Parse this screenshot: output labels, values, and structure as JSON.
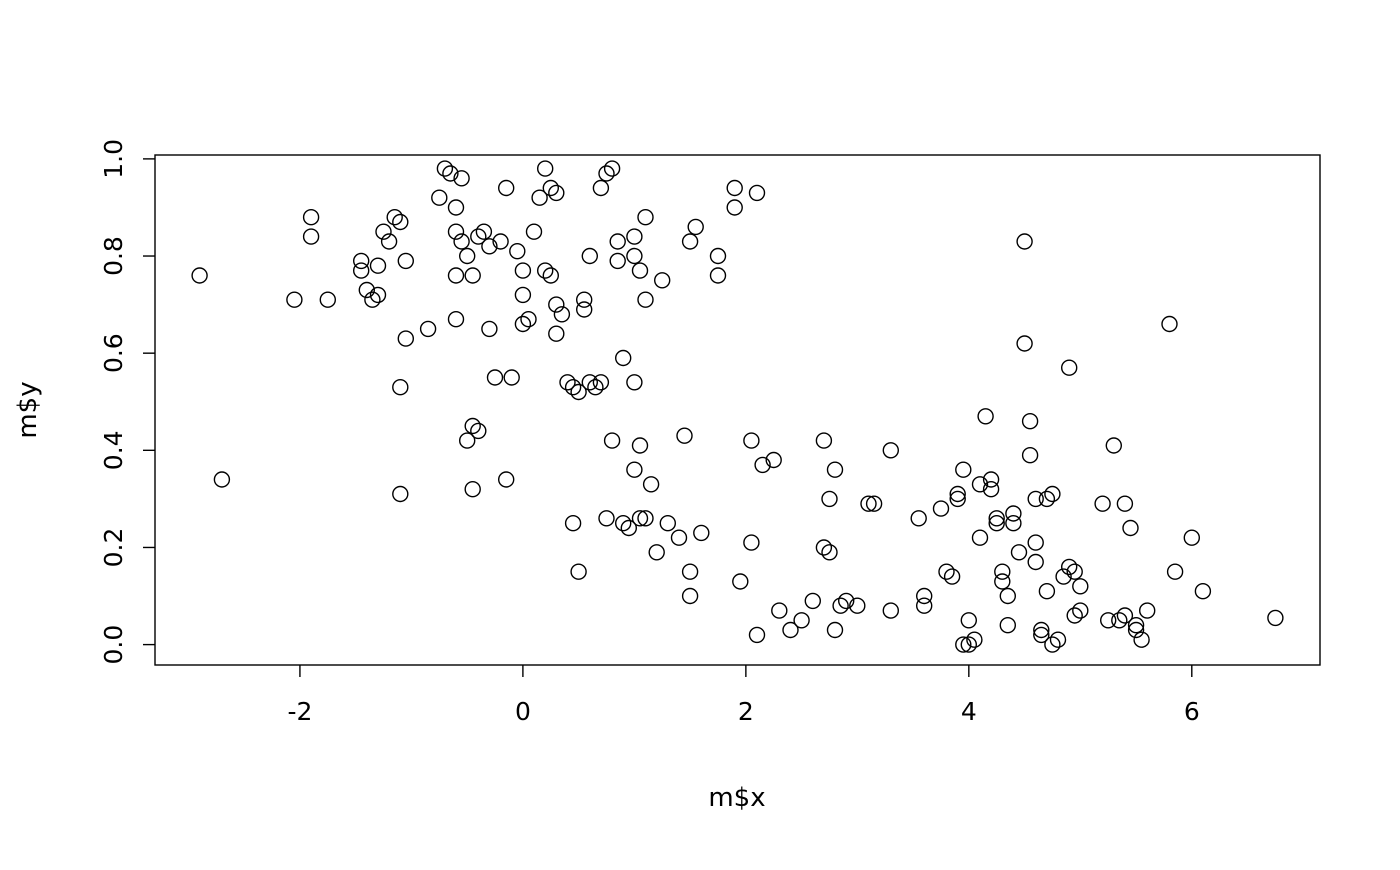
{
  "chart_data": {
    "type": "scatter",
    "title": "",
    "xlabel": "m$x",
    "ylabel": "m$y",
    "xlim": [
      -3.3,
      7.15
    ],
    "ylim": [
      -0.042,
      1.008
    ],
    "x_ticks": [
      -2,
      0,
      2,
      4,
      6
    ],
    "y_ticks": [
      0.0,
      0.2,
      0.4,
      0.6,
      0.8,
      1.0
    ],
    "grid": false,
    "legend": "none",
    "marker": "open-circle",
    "marker_color": "#000000",
    "background_color": "#ffffff",
    "points": [
      [
        -2.9,
        0.76
      ],
      [
        -2.7,
        0.34
      ],
      [
        -2.05,
        0.71
      ],
      [
        -1.9,
        0.88
      ],
      [
        -1.9,
        0.84
      ],
      [
        -1.75,
        0.71
      ],
      [
        -1.45,
        0.79
      ],
      [
        -1.45,
        0.77
      ],
      [
        -1.4,
        0.73
      ],
      [
        -1.35,
        0.71
      ],
      [
        -1.3,
        0.72
      ],
      [
        -1.3,
        0.78
      ],
      [
        -1.25,
        0.85
      ],
      [
        -1.2,
        0.83
      ],
      [
        -1.15,
        0.88
      ],
      [
        -1.1,
        0.87
      ],
      [
        -1.05,
        0.79
      ],
      [
        -1.05,
        0.63
      ],
      [
        -1.1,
        0.53
      ],
      [
        -1.1,
        0.31
      ],
      [
        -0.85,
        0.65
      ],
      [
        -0.75,
        0.92
      ],
      [
        -0.7,
        0.98
      ],
      [
        -0.65,
        0.97
      ],
      [
        -0.6,
        0.9
      ],
      [
        -0.55,
        0.96
      ],
      [
        -0.6,
        0.85
      ],
      [
        -0.55,
        0.83
      ],
      [
        -0.5,
        0.8
      ],
      [
        -0.45,
        0.76
      ],
      [
        -0.6,
        0.76
      ],
      [
        -0.6,
        0.67
      ],
      [
        -0.4,
        0.84
      ],
      [
        -0.35,
        0.85
      ],
      [
        -0.3,
        0.82
      ],
      [
        -0.3,
        0.65
      ],
      [
        -0.45,
        0.45
      ],
      [
        -0.4,
        0.44
      ],
      [
        -0.5,
        0.42
      ],
      [
        -0.45,
        0.32
      ],
      [
        -0.25,
        0.55
      ],
      [
        -0.2,
        0.83
      ],
      [
        -0.15,
        0.94
      ],
      [
        -0.1,
        0.55
      ],
      [
        -0.15,
        0.34
      ],
      [
        -0.05,
        0.81
      ],
      [
        0.0,
        0.77
      ],
      [
        0.0,
        0.72
      ],
      [
        0.05,
        0.67
      ],
      [
        0.0,
        0.66
      ],
      [
        0.1,
        0.85
      ],
      [
        0.15,
        0.92
      ],
      [
        0.2,
        0.98
      ],
      [
        0.25,
        0.94
      ],
      [
        0.3,
        0.93
      ],
      [
        0.2,
        0.77
      ],
      [
        0.25,
        0.76
      ],
      [
        0.3,
        0.7
      ],
      [
        0.3,
        0.64
      ],
      [
        0.35,
        0.68
      ],
      [
        0.4,
        0.54
      ],
      [
        0.45,
        0.53
      ],
      [
        0.5,
        0.52
      ],
      [
        0.45,
        0.25
      ],
      [
        0.5,
        0.15
      ],
      [
        0.55,
        0.71
      ],
      [
        0.55,
        0.69
      ],
      [
        0.6,
        0.8
      ],
      [
        0.6,
        0.54
      ],
      [
        0.65,
        0.53
      ],
      [
        0.7,
        0.94
      ],
      [
        0.75,
        0.97
      ],
      [
        0.8,
        0.98
      ],
      [
        0.7,
        0.54
      ],
      [
        0.75,
        0.26
      ],
      [
        0.8,
        0.42
      ],
      [
        0.85,
        0.83
      ],
      [
        0.85,
        0.79
      ],
      [
        0.9,
        0.59
      ],
      [
        0.9,
        0.25
      ],
      [
        0.95,
        0.24
      ],
      [
        1.0,
        0.84
      ],
      [
        1.0,
        0.8
      ],
      [
        1.05,
        0.77
      ],
      [
        1.0,
        0.54
      ],
      [
        1.05,
        0.41
      ],
      [
        1.0,
        0.36
      ],
      [
        1.1,
        0.26
      ],
      [
        1.05,
        0.26
      ],
      [
        1.1,
        0.88
      ],
      [
        1.1,
        0.71
      ],
      [
        1.15,
        0.33
      ],
      [
        1.2,
        0.19
      ],
      [
        1.25,
        0.75
      ],
      [
        1.3,
        0.25
      ],
      [
        1.4,
        0.22
      ],
      [
        1.45,
        0.43
      ],
      [
        1.5,
        0.83
      ],
      [
        1.55,
        0.86
      ],
      [
        1.5,
        0.15
      ],
      [
        1.5,
        0.1
      ],
      [
        1.6,
        0.23
      ],
      [
        1.75,
        0.8
      ],
      [
        1.75,
        0.76
      ],
      [
        1.9,
        0.94
      ],
      [
        1.9,
        0.9
      ],
      [
        2.1,
        0.93
      ],
      [
        2.05,
        0.42
      ],
      [
        2.05,
        0.21
      ],
      [
        1.95,
        0.13
      ],
      [
        2.1,
        0.02
      ],
      [
        2.15,
        0.37
      ],
      [
        2.25,
        0.38
      ],
      [
        2.3,
        0.07
      ],
      [
        2.4,
        0.03
      ],
      [
        2.5,
        0.05
      ],
      [
        2.6,
        0.09
      ],
      [
        2.7,
        0.42
      ],
      [
        2.75,
        0.3
      ],
      [
        2.7,
        0.2
      ],
      [
        2.75,
        0.19
      ],
      [
        2.8,
        0.36
      ],
      [
        2.85,
        0.08
      ],
      [
        2.9,
        0.09
      ],
      [
        2.8,
        0.03
      ],
      [
        3.0,
        0.08
      ],
      [
        3.1,
        0.29
      ],
      [
        3.15,
        0.29
      ],
      [
        3.3,
        0.4
      ],
      [
        3.3,
        0.07
      ],
      [
        3.55,
        0.26
      ],
      [
        3.6,
        0.1
      ],
      [
        3.6,
        0.08
      ],
      [
        3.75,
        0.28
      ],
      [
        3.8,
        0.15
      ],
      [
        3.85,
        0.14
      ],
      [
        3.9,
        0.31
      ],
      [
        3.9,
        0.3
      ],
      [
        3.95,
        0.36
      ],
      [
        3.95,
        0.0
      ],
      [
        4.0,
        0.0
      ],
      [
        4.0,
        0.05
      ],
      [
        4.05,
        0.01
      ],
      [
        4.1,
        0.22
      ],
      [
        4.1,
        0.33
      ],
      [
        4.15,
        0.47
      ],
      [
        4.2,
        0.34
      ],
      [
        4.2,
        0.32
      ],
      [
        4.25,
        0.26
      ],
      [
        4.25,
        0.25
      ],
      [
        4.3,
        0.15
      ],
      [
        4.3,
        0.13
      ],
      [
        4.35,
        0.1
      ],
      [
        4.35,
        0.04
      ],
      [
        4.4,
        0.27
      ],
      [
        4.4,
        0.25
      ],
      [
        4.45,
        0.19
      ],
      [
        4.5,
        0.83
      ],
      [
        4.5,
        0.62
      ],
      [
        4.55,
        0.46
      ],
      [
        4.55,
        0.39
      ],
      [
        4.6,
        0.3
      ],
      [
        4.6,
        0.21
      ],
      [
        4.6,
        0.17
      ],
      [
        4.65,
        0.03
      ],
      [
        4.65,
        0.02
      ],
      [
        4.7,
        0.3
      ],
      [
        4.75,
        0.31
      ],
      [
        4.7,
        0.11
      ],
      [
        4.75,
        0.0
      ],
      [
        4.8,
        0.01
      ],
      [
        4.85,
        0.14
      ],
      [
        4.9,
        0.57
      ],
      [
        4.9,
        0.16
      ],
      [
        4.95,
        0.15
      ],
      [
        4.95,
        0.06
      ],
      [
        5.0,
        0.12
      ],
      [
        5.0,
        0.07
      ],
      [
        5.2,
        0.29
      ],
      [
        5.3,
        0.41
      ],
      [
        5.25,
        0.05
      ],
      [
        5.35,
        0.05
      ],
      [
        5.4,
        0.29
      ],
      [
        5.45,
        0.24
      ],
      [
        5.4,
        0.06
      ],
      [
        5.5,
        0.04
      ],
      [
        5.5,
        0.03
      ],
      [
        5.55,
        0.01
      ],
      [
        5.6,
        0.07
      ],
      [
        5.8,
        0.66
      ],
      [
        5.85,
        0.15
      ],
      [
        6.0,
        0.22
      ],
      [
        6.1,
        0.11
      ],
      [
        6.75,
        0.055
      ]
    ]
  }
}
